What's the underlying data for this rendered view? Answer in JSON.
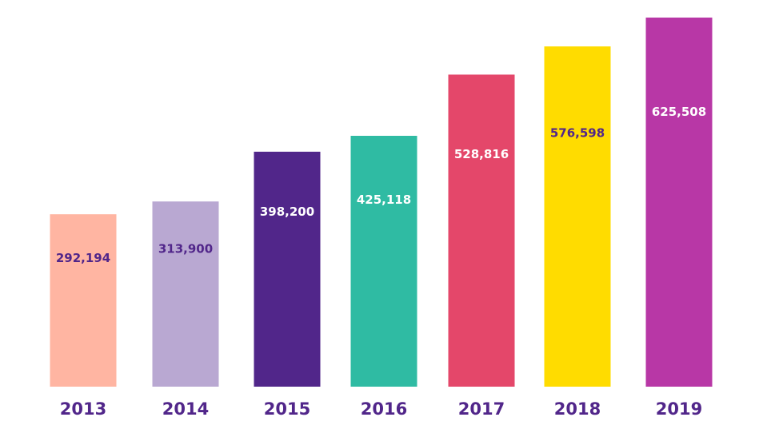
{
  "chart_data": {
    "type": "bar",
    "categories": [
      "2013",
      "2014",
      "2015",
      "2016",
      "2017",
      "2018",
      "2019"
    ],
    "values": [
      292194,
      313900,
      398200,
      425118,
      528816,
      576598,
      625508
    ],
    "value_labels": [
      "292,194",
      "313,900",
      "398,200",
      "425,118",
      "528,816",
      "576,598",
      "625,508"
    ],
    "bar_colors": [
      "#FFB5A2",
      "#B9A8D2",
      "#51268A",
      "#2FBBA3",
      "#E4476A",
      "#FFDC00",
      "#B837A6"
    ],
    "label_colors": [
      "#51268A",
      "#51268A",
      "#FFFFFF",
      "#FFFFFF",
      "#FFFFFF",
      "#51268A",
      "#FFFFFF"
    ],
    "tick_color": "#51268A",
    "title": "",
    "xlabel": "",
    "ylabel": "",
    "ylim": [
      0,
      625508
    ],
    "grid": false,
    "legend": "none"
  }
}
